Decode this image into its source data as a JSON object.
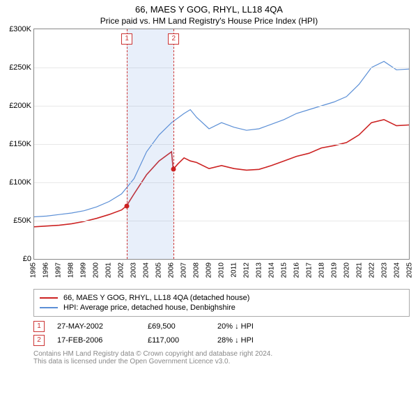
{
  "title": "66, MAES Y GOG, RHYL, LL18 4QA",
  "subtitle": "Price paid vs. HM Land Registry's House Price Index (HPI)",
  "chart": {
    "background_color": "#ffffff",
    "grid_color": "#e8e8e8",
    "border_color": "#888888",
    "y": {
      "min": 0,
      "max": 300000,
      "ticks": [
        0,
        50000,
        100000,
        150000,
        200000,
        250000,
        300000
      ],
      "tick_labels": [
        "£0",
        "£50K",
        "£100K",
        "£150K",
        "£200K",
        "£250K",
        "£300K"
      ],
      "label_fontsize": 11
    },
    "x": {
      "min": 1995,
      "max": 2025,
      "ticks": [
        1995,
        1996,
        1997,
        1998,
        1999,
        2000,
        2001,
        2002,
        2003,
        2004,
        2005,
        2006,
        2007,
        2008,
        2009,
        2010,
        2011,
        2012,
        2013,
        2014,
        2015,
        2016,
        2017,
        2018,
        2019,
        2020,
        2021,
        2022,
        2023,
        2024,
        2025
      ],
      "label_fontsize": 10
    },
    "band": {
      "start": 2002.4,
      "end": 2006.13,
      "color": "rgba(100,150,220,0.15)"
    },
    "vlines": [
      {
        "x": 2002.4,
        "color": "#cc3333",
        "label": "1"
      },
      {
        "x": 2006.13,
        "color": "#cc3333",
        "label": "2"
      }
    ],
    "series": [
      {
        "name": "66, MAES Y GOG, RHYL, LL18 4QA (detached house)",
        "color": "#cc2222",
        "width": 1.6,
        "points": [
          [
            1995,
            42000
          ],
          [
            1996,
            43000
          ],
          [
            1997,
            44000
          ],
          [
            1998,
            46000
          ],
          [
            1999,
            49000
          ],
          [
            2000,
            53000
          ],
          [
            2001,
            58000
          ],
          [
            2002,
            64000
          ],
          [
            2002.4,
            69500
          ],
          [
            2003,
            85000
          ],
          [
            2004,
            110000
          ],
          [
            2005,
            128000
          ],
          [
            2006,
            140000
          ],
          [
            2006.13,
            117000
          ],
          [
            2006.5,
            124000
          ],
          [
            2007,
            132000
          ],
          [
            2007.5,
            128000
          ],
          [
            2008,
            126000
          ],
          [
            2009,
            118000
          ],
          [
            2010,
            122000
          ],
          [
            2011,
            118000
          ],
          [
            2012,
            116000
          ],
          [
            2013,
            117000
          ],
          [
            2014,
            122000
          ],
          [
            2015,
            128000
          ],
          [
            2016,
            134000
          ],
          [
            2017,
            138000
          ],
          [
            2018,
            145000
          ],
          [
            2019,
            148000
          ],
          [
            2020,
            152000
          ],
          [
            2021,
            162000
          ],
          [
            2022,
            178000
          ],
          [
            2023,
            182000
          ],
          [
            2024,
            174000
          ],
          [
            2025,
            175000
          ]
        ],
        "markers": [
          {
            "x": 2002.4,
            "y": 69500
          },
          {
            "x": 2006.13,
            "y": 117000
          }
        ]
      },
      {
        "name": "HPI: Average price, detached house, Denbighshire",
        "color": "#5b8fd6",
        "width": 1.2,
        "points": [
          [
            1995,
            55000
          ],
          [
            1996,
            56000
          ],
          [
            1997,
            58000
          ],
          [
            1998,
            60000
          ],
          [
            1999,
            63000
          ],
          [
            2000,
            68000
          ],
          [
            2001,
            75000
          ],
          [
            2002,
            85000
          ],
          [
            2003,
            105000
          ],
          [
            2004,
            140000
          ],
          [
            2005,
            162000
          ],
          [
            2006,
            178000
          ],
          [
            2007,
            190000
          ],
          [
            2007.5,
            195000
          ],
          [
            2008,
            185000
          ],
          [
            2009,
            170000
          ],
          [
            2010,
            178000
          ],
          [
            2011,
            172000
          ],
          [
            2012,
            168000
          ],
          [
            2013,
            170000
          ],
          [
            2014,
            176000
          ],
          [
            2015,
            182000
          ],
          [
            2016,
            190000
          ],
          [
            2017,
            195000
          ],
          [
            2018,
            200000
          ],
          [
            2019,
            205000
          ],
          [
            2020,
            212000
          ],
          [
            2021,
            228000
          ],
          [
            2022,
            250000
          ],
          [
            2023,
            258000
          ],
          [
            2024,
            247000
          ],
          [
            2025,
            248000
          ]
        ]
      }
    ]
  },
  "legend": {
    "items": [
      {
        "color": "#cc2222",
        "label": "66, MAES Y GOG, RHYL, LL18 4QA (detached house)"
      },
      {
        "color": "#5b8fd6",
        "label": "HPI: Average price, detached house, Denbighshire"
      }
    ]
  },
  "transactions": [
    {
      "n": "1",
      "date": "27-MAY-2002",
      "price": "£69,500",
      "delta": "20% ↓ HPI"
    },
    {
      "n": "2",
      "date": "17-FEB-2006",
      "price": "£117,000",
      "delta": "28% ↓ HPI"
    }
  ],
  "footer": {
    "line1": "Contains HM Land Registry data © Crown copyright and database right 2024.",
    "line2": "This data is licensed under the Open Government Licence v3.0."
  }
}
